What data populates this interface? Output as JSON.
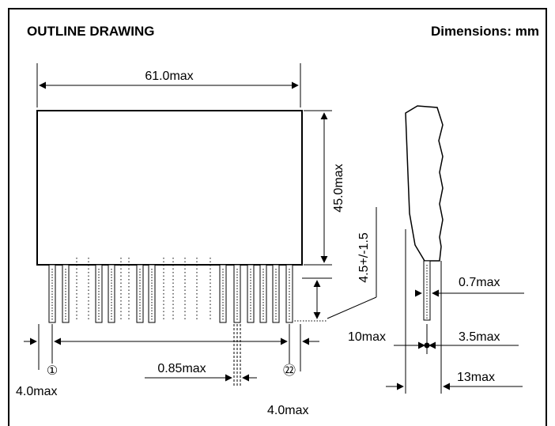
{
  "header": {
    "title": "OUTLINE DRAWING",
    "units": "Dimensions: mm"
  },
  "dimensions": {
    "width": "61.0max",
    "height": "45.0max",
    "pin_length": "4.5+/-1.5",
    "pin_pitch": "0.85max",
    "left_offset": "4.0max",
    "right_offset": "4.0max",
    "pin_thickness": "0.7max",
    "side_10": "10max",
    "side_3_5": "3.5max",
    "side_13": "13max"
  },
  "pins": {
    "first": "①",
    "last": "㉒"
  }
}
